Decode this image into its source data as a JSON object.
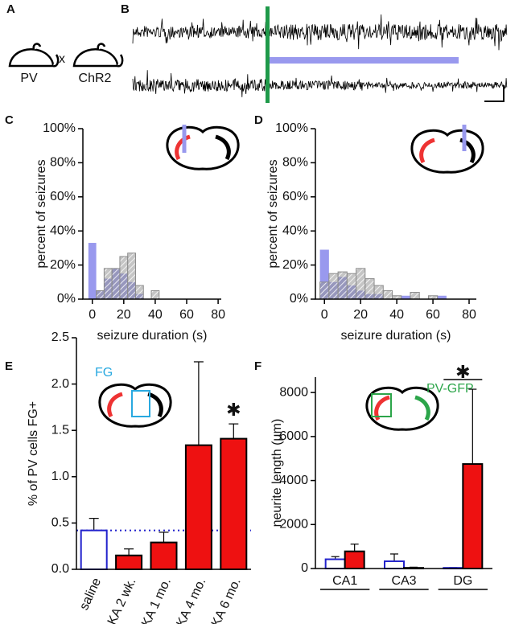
{
  "panel_letters": [
    "A",
    "B",
    "C",
    "D",
    "E",
    "F"
  ],
  "panel_a": {
    "left": "PV",
    "cross": "x",
    "right": "ChR2"
  },
  "chart_data": [
    {
      "type": "histogram",
      "ylabel": "percent of seizures",
      "xlabel": "seizure duration (s)",
      "bins": [
        -2.5,
        2.5,
        7.5,
        12.5,
        17.5,
        22.5,
        27.5,
        32.5,
        37.5,
        42.5,
        47.5
      ],
      "series": [
        {
          "color": "#9999ee",
          "values": [
            33,
            5,
            12,
            18,
            15,
            10,
            3,
            0,
            0,
            0
          ]
        },
        {
          "color": "#8c8c8c",
          "hatch": true,
          "values": [
            0,
            5,
            18,
            18,
            25,
            27,
            8,
            0,
            5,
            0
          ]
        }
      ],
      "xlim": [
        -6,
        82
      ],
      "xticks": [
        0,
        20,
        40,
        60,
        80
      ],
      "ylim": [
        0,
        100
      ],
      "yticks": [
        {
          "value": 0,
          "label": "0%"
        },
        {
          "value": 20,
          "label": "20%"
        },
        {
          "value": 40,
          "label": "40%"
        },
        {
          "value": 60,
          "label": "60%"
        },
        {
          "value": 80,
          "label": "80%"
        },
        {
          "value": 100,
          "label": "100%"
        }
      ]
    },
    {
      "type": "histogram",
      "ylabel": "percent of seizures",
      "xlabel": "seizure duration (s)",
      "bins": [
        -2.5,
        2.5,
        7.5,
        12.5,
        17.5,
        22.5,
        27.5,
        32.5,
        37.5,
        42.5,
        47.5,
        52.5,
        57.5,
        62.5,
        67.5
      ],
      "series": [
        {
          "color": "#9999ee",
          "values": [
            29,
            10,
            13,
            8,
            5,
            3,
            3,
            0,
            0,
            2,
            0,
            0,
            0,
            2
          ]
        },
        {
          "color": "#8c8c8c",
          "hatch": true,
          "values": [
            10,
            15,
            16,
            15,
            18,
            12,
            8,
            5,
            2,
            0,
            4,
            0,
            2,
            0
          ]
        }
      ],
      "xlim": [
        -5,
        84
      ],
      "xticks": [
        0,
        20,
        40,
        60,
        80
      ],
      "ylim": [
        0,
        100
      ],
      "yticks": [
        {
          "value": 0,
          "label": "0%"
        },
        {
          "value": 20,
          "label": "20%"
        },
        {
          "value": 40,
          "label": "40%"
        },
        {
          "value": 60,
          "label": "60%"
        },
        {
          "value": 80,
          "label": "80%"
        },
        {
          "value": 100,
          "label": "100%"
        }
      ]
    },
    {
      "type": "bar",
      "ylabel": "% of PV cells FG+",
      "inset_label": "FG",
      "categories": [
        "saline",
        "KA 2 wk.",
        "KA 1 mo.",
        "KA 4 mo.",
        "KA 6 mo."
      ],
      "values": [
        0.42,
        0.15,
        0.29,
        1.34,
        1.41
      ],
      "errors": [
        0.13,
        0.07,
        0.11,
        0.9,
        0.16
      ],
      "colors": [
        "#ffffff",
        "#ee1111",
        "#ee1111",
        "#ee1111",
        "#ee1111"
      ],
      "edge_colors": [
        "#2222cc",
        "#000000",
        "#000000",
        "#000000",
        "#000000"
      ],
      "reference_line": true,
      "annotation": {
        "text": "✱",
        "category": "KA 6 mo."
      },
      "ylim": [
        0,
        2.5
      ],
      "yticks": [
        {
          "value": 0,
          "label": "0.0"
        },
        0.5,
        {
          "value": 1,
          "label": "1.0"
        },
        1.5,
        {
          "value": 2,
          "label": "2.0"
        },
        2.5
      ]
    },
    {
      "type": "grouped_bar",
      "ylabel": "neurite length (µm)",
      "inset_label": "PV-GFP",
      "categories": [
        "CA1",
        "CA3",
        "DG"
      ],
      "series": [
        {
          "color": "#ffffff",
          "edge_color": "#2222cc",
          "values": [
            420,
            330,
            30
          ],
          "errors": [
            120,
            330,
            10
          ]
        },
        {
          "color": "#ee1111",
          "edge_color": "#000000",
          "values": [
            780,
            30,
            4750
          ],
          "errors": [
            330,
            30,
            3400
          ]
        }
      ],
      "annotation": {
        "text": "✱",
        "category": "DG"
      },
      "ylim": [
        0,
        8700
      ],
      "yticks": [
        0,
        2000,
        4000,
        6000,
        8000
      ]
    }
  ]
}
